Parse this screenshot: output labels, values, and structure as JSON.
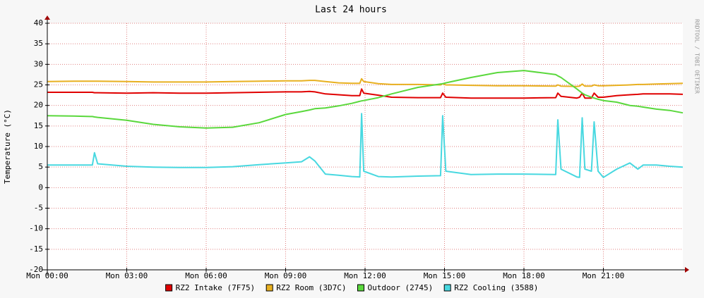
{
  "chart_data": {
    "type": "line",
    "title": "Last 24 hours",
    "y_label": "Temperature (°C)",
    "watermark": "RRDTOOL / TOBI OETIKER",
    "x": [
      0,
      1,
      1.7,
      1.78,
      1.9,
      3,
      4,
      5,
      6,
      7,
      8,
      9,
      9.6,
      9.9,
      10.1,
      10.5,
      11,
      11.5,
      11.8,
      11.87,
      11.95,
      12.5,
      13,
      14,
      14.85,
      14.93,
      15.05,
      16,
      17,
      18,
      19.2,
      19.28,
      19.4,
      20,
      20.1,
      20.2,
      20.3,
      20.55,
      20.65,
      20.8,
      21,
      21.5,
      22,
      22.3,
      22.5,
      23,
      23.5,
      24
    ],
    "xlim": [
      0,
      24
    ],
    "xticks": [
      {
        "value": 0,
        "label": "Mon 00:00"
      },
      {
        "value": 3,
        "label": "Mon 03:00"
      },
      {
        "value": 6,
        "label": "Mon 06:00"
      },
      {
        "value": 9,
        "label": "Mon 09:00"
      },
      {
        "value": 12,
        "label": "Mon 12:00"
      },
      {
        "value": 15,
        "label": "Mon 15:00"
      },
      {
        "value": 18,
        "label": "Mon 18:00"
      },
      {
        "value": 21,
        "label": "Mon 21:00"
      }
    ],
    "ylim": [
      -20,
      40
    ],
    "yticks": [
      -20,
      -15,
      -10,
      -5,
      0,
      5,
      10,
      15,
      20,
      25,
      30,
      35,
      40
    ],
    "grid": true,
    "legend": "bottom",
    "series": [
      {
        "name": "RZ2 Intake (7F75)",
        "color": "#e00000",
        "values": [
          23.2,
          23.2,
          23.2,
          23.1,
          23.1,
          23,
          23.1,
          23,
          23,
          23.1,
          23.2,
          23.3,
          23.3,
          23.4,
          23.3,
          22.8,
          22.6,
          22.4,
          22.4,
          24,
          23,
          22.5,
          22,
          21.9,
          21.9,
          23,
          22,
          21.8,
          21.8,
          21.8,
          21.9,
          23,
          22.2,
          21.8,
          22,
          23,
          21.8,
          21.8,
          23,
          22,
          22,
          22.4,
          22.6,
          22.7,
          22.8,
          22.8,
          22.8,
          22.7
        ]
      },
      {
        "name": "RZ2 Room (3D7C)",
        "color": "#e8b020",
        "values": [
          25.8,
          25.9,
          25.9,
          25.9,
          25.9,
          25.8,
          25.7,
          25.7,
          25.7,
          25.8,
          25.9,
          26,
          26,
          26.1,
          26.1,
          25.8,
          25.5,
          25.4,
          25.4,
          26.5,
          25.8,
          25.3,
          25.1,
          25.1,
          25,
          25.3,
          25,
          24.9,
          24.8,
          24.8,
          24.7,
          25,
          24.7,
          24.6,
          24.7,
          25.2,
          24.7,
          24.7,
          25,
          24.8,
          24.8,
          24.9,
          25,
          25.1,
          25.1,
          25.2,
          25.3,
          25.4
        ]
      },
      {
        "name": "Outdoor (2745)",
        "color": "#5ad83c",
        "values": [
          17.5,
          17.4,
          17.3,
          17.2,
          17.1,
          16.4,
          15.4,
          14.8,
          14.5,
          14.7,
          15.8,
          17.8,
          18.5,
          18.9,
          19.2,
          19.4,
          19.9,
          20.5,
          21,
          21.1,
          21.2,
          21.9,
          22.8,
          24.4,
          25.2,
          25.3,
          25.5,
          26.8,
          28,
          28.5,
          27.5,
          27.2,
          26.8,
          24,
          23.5,
          23,
          22.6,
          22,
          21.8,
          21.5,
          21.2,
          20.8,
          20,
          19.8,
          19.6,
          19.1,
          18.8,
          18.2
        ]
      },
      {
        "name": "RZ2 Cooling (3588)",
        "color": "#48d8e0",
        "values": [
          5.5,
          5.5,
          5.5,
          8.5,
          5.8,
          5.2,
          5,
          4.9,
          4.9,
          5.1,
          5.6,
          6,
          6.3,
          7.5,
          6.5,
          3.3,
          3,
          2.7,
          2.6,
          18,
          4,
          2.7,
          2.6,
          2.8,
          2.9,
          17.5,
          4,
          3.2,
          3.3,
          3.3,
          3.2,
          16.5,
          4.5,
          2.6,
          2.5,
          17,
          4.5,
          4,
          16,
          4,
          2.5,
          4.5,
          6,
          4.5,
          5.5,
          5.5,
          5.2,
          5
        ]
      }
    ]
  }
}
